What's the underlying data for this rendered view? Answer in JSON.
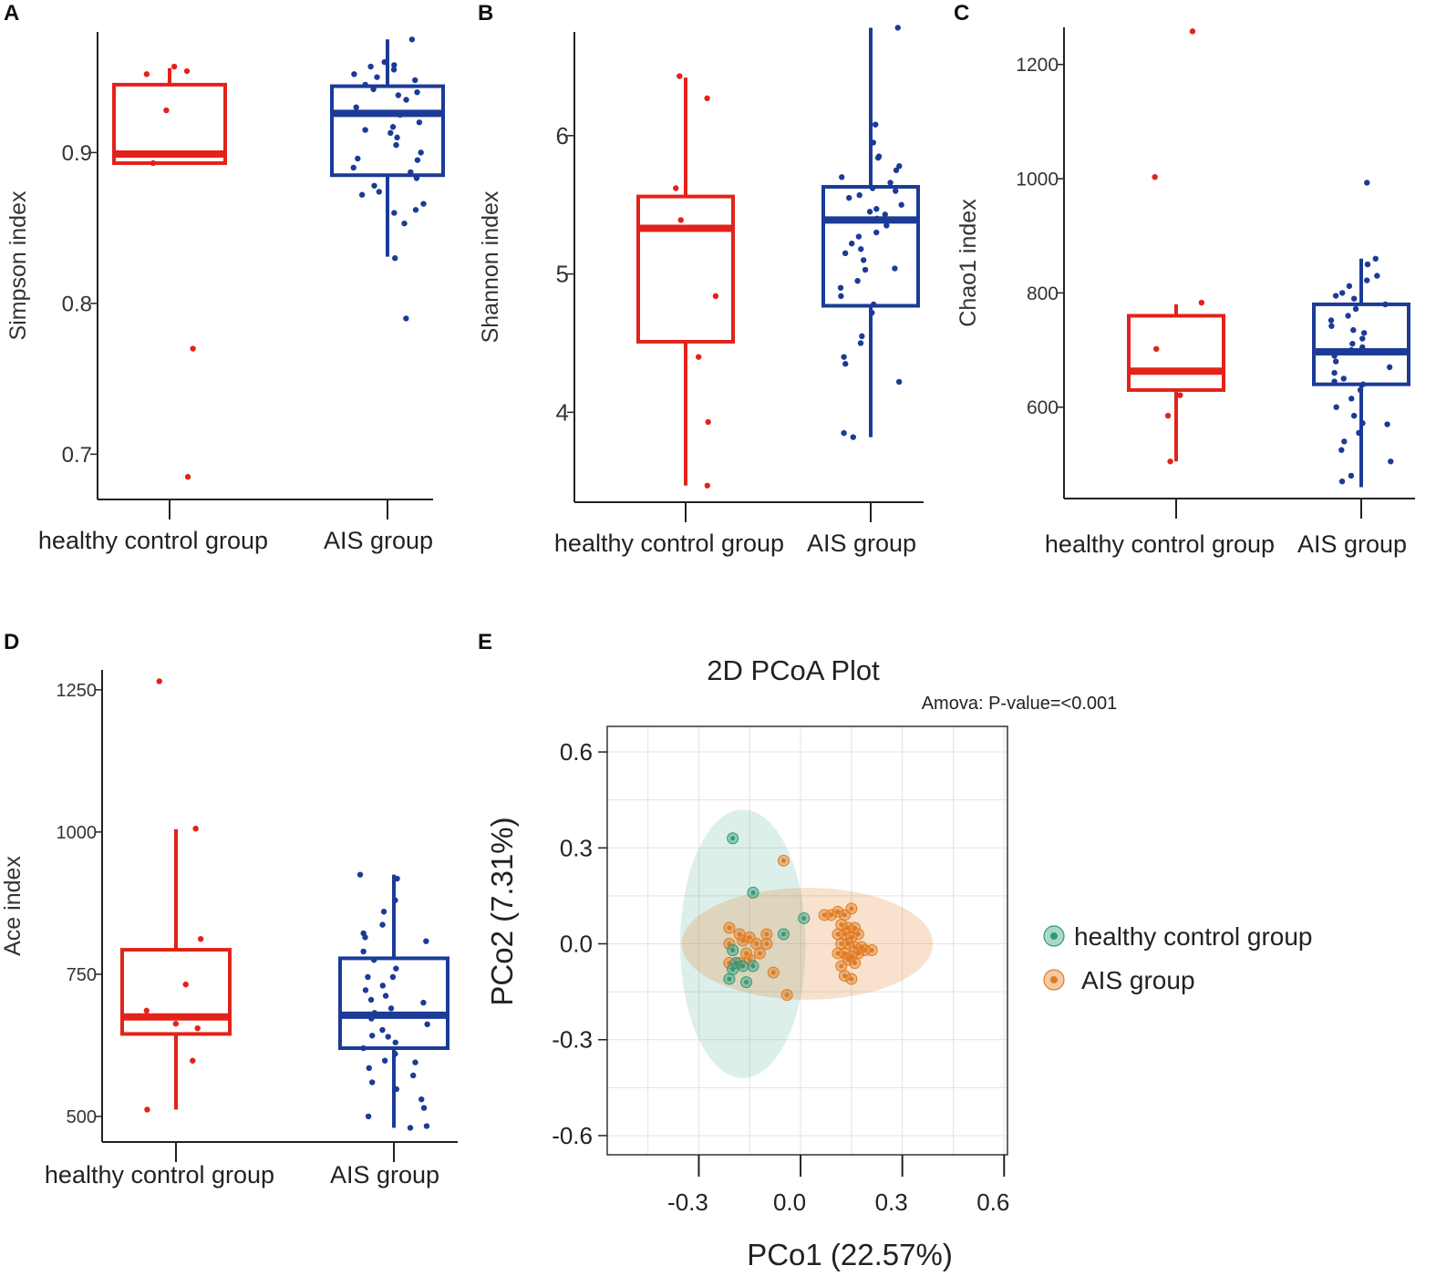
{
  "colors": {
    "control": "#e2231a",
    "ais": "#1b3b96",
    "pcoa_control": "#2e9b7a",
    "pcoa_ais": "#e07b1f",
    "grid": "#e3e3e3"
  },
  "chart_data": [
    {
      "panel": "A",
      "type": "box",
      "ylabel": "Simpson index",
      "categories": [
        "healthy control group",
        "AIS group"
      ],
      "yticks": [
        "0.7",
        "0.8",
        "0.9"
      ],
      "ytick_values": [
        0.7,
        0.8,
        0.9
      ],
      "ylim": [
        0.67,
        0.98
      ],
      "series": [
        {
          "name": "healthy control group",
          "color_key": "control",
          "stats": {
            "min": 0.893,
            "q1": 0.893,
            "median": 0.899,
            "q3": 0.945,
            "max": 0.956
          },
          "points": [
            0.952,
            0.954,
            0.957,
            0.928,
            0.893,
            0.77,
            0.685
          ]
        },
        {
          "name": "AIS group",
          "color_key": "ais",
          "stats": {
            "min": 0.831,
            "q1": 0.885,
            "median": 0.926,
            "q3": 0.944,
            "max": 0.975
          },
          "points": [
            0.975,
            0.96,
            0.957,
            0.955,
            0.952,
            0.95,
            0.948,
            0.945,
            0.94,
            0.938,
            0.935,
            0.93,
            0.925,
            0.92,
            0.917,
            0.913,
            0.91,
            0.905,
            0.9,
            0.895,
            0.89,
            0.887,
            0.883,
            0.878,
            0.872,
            0.866,
            0.86,
            0.853,
            0.83,
            0.79,
            0.958,
            0.942,
            0.915,
            0.896,
            0.874,
            0.862
          ]
        }
      ]
    },
    {
      "panel": "B",
      "type": "box",
      "ylabel": "Shannon index",
      "categories": [
        "healthy control group",
        "AIS group"
      ],
      "yticks": [
        "4",
        "5",
        "6"
      ],
      "ytick_values": [
        4,
        5,
        6
      ],
      "ylim": [
        3.35,
        6.75
      ],
      "series": [
        {
          "name": "healthy control group",
          "color_key": "control",
          "stats": {
            "min": 3.47,
            "q1": 4.51,
            "median": 5.33,
            "q3": 5.56,
            "max": 6.42
          },
          "points": [
            6.43,
            6.27,
            5.62,
            5.39,
            5.33,
            4.84,
            4.4,
            3.93,
            3.47
          ]
        },
        {
          "name": "AIS group",
          "color_key": "ais",
          "stats": {
            "min": 3.82,
            "q1": 4.77,
            "median": 5.39,
            "q3": 5.63,
            "max": 6.78
          },
          "points": [
            6.78,
            6.08,
            5.95,
            5.85,
            5.84,
            5.78,
            5.75,
            5.7,
            5.66,
            5.6,
            5.57,
            5.55,
            5.5,
            5.47,
            5.43,
            5.4,
            5.35,
            5.3,
            5.27,
            5.22,
            5.15,
            5.1,
            5.04,
            5.03,
            4.95,
            4.9,
            4.84,
            4.78,
            4.72,
            4.55,
            4.5,
            4.4,
            4.35,
            4.22,
            3.85,
            3.82,
            5.62,
            5.45,
            5.18
          ]
        }
      ]
    },
    {
      "panel": "C",
      "type": "box",
      "ylabel": "Chao1 index",
      "categories": [
        "healthy control group",
        "AIS group"
      ],
      "yticks": [
        "600",
        "800",
        "1000",
        "1200"
      ],
      "ytick_values": [
        600,
        800,
        1000,
        1200
      ],
      "ylim": [
        440,
        1265
      ],
      "series": [
        {
          "name": "healthy control group",
          "color_key": "control",
          "stats": {
            "min": 505,
            "q1": 630,
            "median": 663,
            "q3": 760,
            "max": 780
          },
          "points": [
            1258,
            1003,
            783,
            702,
            662,
            621,
            585,
            505
          ]
        },
        {
          "name": "AIS group",
          "color_key": "ais",
          "stats": {
            "min": 460,
            "q1": 640,
            "median": 697,
            "q3": 780,
            "max": 860
          },
          "points": [
            993,
            860,
            850,
            830,
            822,
            812,
            800,
            795,
            790,
            780,
            772,
            760,
            752,
            742,
            730,
            720,
            711,
            700,
            690,
            680,
            670,
            660,
            650,
            640,
            630,
            615,
            600,
            585,
            570,
            555,
            540,
            525,
            505,
            480,
            470,
            572,
            645,
            705,
            735
          ]
        }
      ]
    },
    {
      "panel": "D",
      "type": "box",
      "ylabel": "Ace index",
      "categories": [
        "healthy control group",
        "AIS group"
      ],
      "yticks": [
        "500",
        "750",
        "1000",
        "1250"
      ],
      "ytick_values": [
        500,
        750,
        1000,
        1250
      ],
      "ylim": [
        455,
        1285
      ],
      "series": [
        {
          "name": "healthy control group",
          "color_key": "control",
          "stats": {
            "min": 512,
            "q1": 645,
            "median": 675,
            "q3": 793,
            "max": 1005
          },
          "points": [
            1265,
            1006,
            812,
            732,
            686,
            663,
            655,
            598,
            512
          ]
        },
        {
          "name": "AIS group",
          "color_key": "ais",
          "stats": {
            "min": 480,
            "q1": 620,
            "median": 678,
            "q3": 778,
            "max": 925
          },
          "points": [
            925,
            918,
            880,
            860,
            837,
            822,
            815,
            808,
            790,
            775,
            760,
            745,
            730,
            722,
            712,
            700,
            690,
            682,
            672,
            662,
            652,
            642,
            630,
            620,
            610,
            598,
            585,
            572,
            560,
            548,
            530,
            515,
            500,
            483,
            480,
            745,
            705,
            640,
            595
          ]
        }
      ]
    },
    {
      "panel": "E",
      "type": "scatter",
      "title": "2D PCoA Plot",
      "annotation": "Amova: P-value=<0.001",
      "xlabel": "PCo1 (22.57%)",
      "ylabel": "PCo2 (7.31%)",
      "xticks": [
        "-0.3",
        "0.0",
        "0.3",
        "0.6"
      ],
      "xtick_values": [
        -0.3,
        0.0,
        0.3,
        0.6
      ],
      "yticks": [
        "-0.6",
        "-0.3",
        "0.0",
        "0.3",
        "0.6"
      ],
      "ytick_values": [
        -0.6,
        -0.3,
        0.0,
        0.3,
        0.6
      ],
      "xlim": [
        -0.57,
        0.61
      ],
      "ylim": [
        -0.66,
        0.68
      ],
      "series": [
        {
          "name": "healthy control group",
          "color_key": "pcoa_control",
          "points": [
            [
              -0.2,
              0.33
            ],
            [
              -0.14,
              0.16
            ],
            [
              0.01,
              0.08
            ],
            [
              -0.05,
              0.03
            ],
            [
              -0.2,
              -0.02
            ],
            [
              -0.2,
              -0.08
            ],
            [
              -0.21,
              -0.11
            ],
            [
              -0.16,
              -0.12
            ],
            [
              -0.17,
              -0.07
            ],
            [
              -0.14,
              -0.07
            ],
            [
              -0.19,
              -0.06
            ]
          ],
          "ellipse": {
            "cx": -0.17,
            "cy": 0.0,
            "rx": 0.185,
            "ry": 0.42
          }
        },
        {
          "name": "AIS group",
          "color_key": "pcoa_ais",
          "points": [
            [
              -0.05,
              0.26
            ],
            [
              0.07,
              0.09
            ],
            [
              0.09,
              0.09
            ],
            [
              0.11,
              0.1
            ],
            [
              0.13,
              0.09
            ],
            [
              0.15,
              0.11
            ],
            [
              0.12,
              0.06
            ],
            [
              0.14,
              0.05
            ],
            [
              0.16,
              0.05
            ],
            [
              0.11,
              0.03
            ],
            [
              0.13,
              0.03
            ],
            [
              0.15,
              0.02
            ],
            [
              0.17,
              0.03
            ],
            [
              0.12,
              0.0
            ],
            [
              0.14,
              0.0
            ],
            [
              0.16,
              -0.01
            ],
            [
              0.18,
              -0.01
            ],
            [
              0.11,
              -0.03
            ],
            [
              0.13,
              -0.03
            ],
            [
              0.15,
              -0.04
            ],
            [
              0.17,
              -0.03
            ],
            [
              0.14,
              -0.05
            ],
            [
              0.16,
              -0.06
            ],
            [
              0.12,
              -0.07
            ],
            [
              0.13,
              -0.1
            ],
            [
              0.15,
              -0.11
            ],
            [
              0.19,
              -0.02
            ],
            [
              0.21,
              -0.02
            ],
            [
              -0.21,
              0.05
            ],
            [
              -0.18,
              0.03
            ],
            [
              -0.17,
              0.01
            ],
            [
              -0.21,
              0.0
            ],
            [
              -0.15,
              0.02
            ],
            [
              -0.13,
              0.0
            ],
            [
              -0.16,
              -0.03
            ],
            [
              -0.1,
              0.03
            ],
            [
              -0.08,
              -0.09
            ],
            [
              -0.04,
              -0.16
            ],
            [
              -0.21,
              -0.06
            ],
            [
              -0.18,
              -0.06
            ],
            [
              -0.15,
              -0.05
            ],
            [
              -0.12,
              -0.03
            ],
            [
              -0.1,
              0.0
            ]
          ],
          "ellipse": {
            "cx": 0.02,
            "cy": 0.0,
            "rx": 0.37,
            "ry": 0.175
          }
        }
      ],
      "legend": [
        "healthy control group",
        "AIS group"
      ]
    }
  ]
}
